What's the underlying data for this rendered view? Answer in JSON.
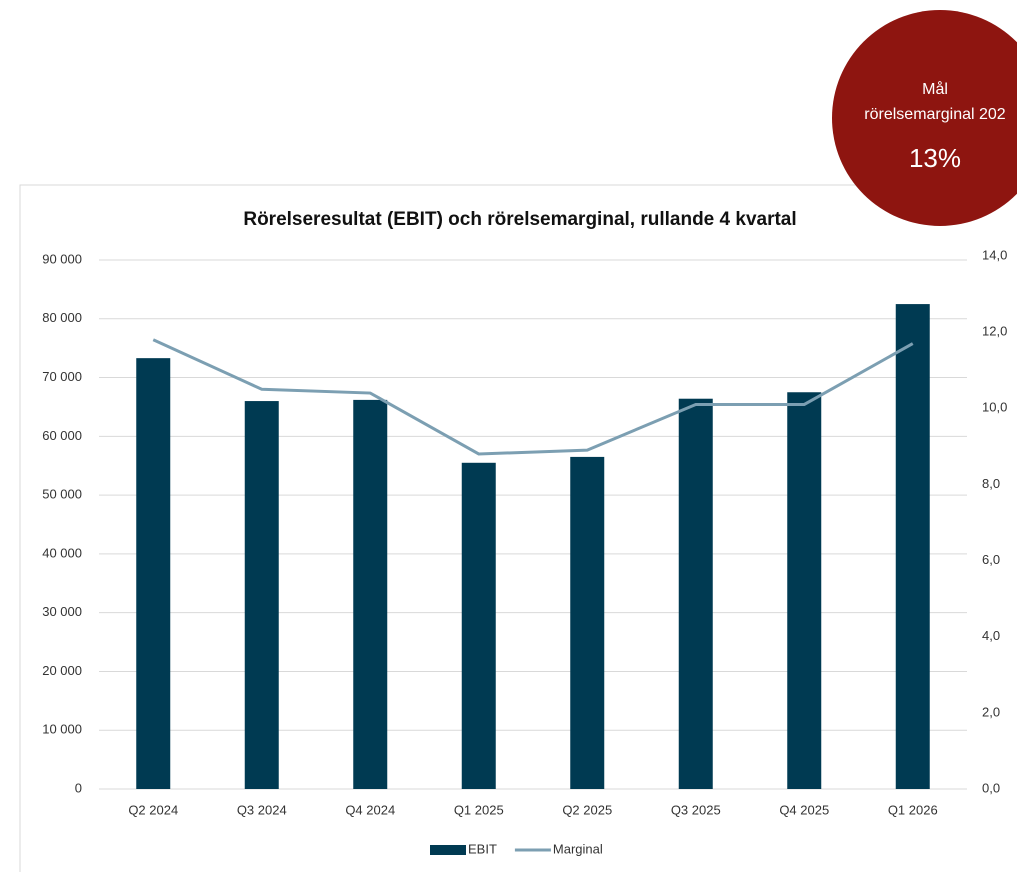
{
  "chart_data": {
    "type": "bar",
    "title": "Rörelseresultat (EBIT) och rörelsemarginal, rullande 4 kvartal",
    "categories": [
      "Q2 2024",
      "Q3 2024",
      "Q4 2024",
      "Q1 2025",
      "Q2 2025",
      "Q3 2025",
      "Q4 2025",
      "Q1 2026"
    ],
    "series": [
      {
        "name": "EBIT",
        "type": "bar",
        "color": "#003a52",
        "values": [
          73300,
          66000,
          66200,
          55500,
          56500,
          66400,
          67500,
          82500
        ]
      },
      {
        "name": "Marginal",
        "type": "line",
        "axis": "y2",
        "color": "#7c9fb2",
        "values": [
          11.8,
          10.5,
          10.4,
          8.8,
          8.9,
          10.1,
          10.1,
          11.7
        ]
      }
    ],
    "ylim": [
      0,
      90000
    ],
    "yticks": [
      0,
      {
        "value": 10000,
        "label": "10 000"
      },
      {
        "value": 20000,
        "label": "20 000"
      },
      {
        "value": 30000,
        "label": "30 000"
      },
      {
        "value": 40000,
        "label": "40 000"
      },
      {
        "value": 50000,
        "label": "50 000"
      },
      {
        "value": 60000,
        "label": "60 000"
      },
      {
        "value": 70000,
        "label": "70 000"
      },
      {
        "value": 80000,
        "label": "80 000"
      },
      {
        "value": 90000,
        "label": "90 000"
      }
    ],
    "y2lim": [
      0,
      14
    ],
    "y2ticks": [
      {
        "value": 0,
        "label": "0,0"
      },
      {
        "value": 2,
        "label": "2,0"
      },
      {
        "value": 4,
        "label": "4,0"
      },
      {
        "value": 6,
        "label": "6,0"
      },
      {
        "value": 8,
        "label": "8,0"
      },
      {
        "value": 10,
        "label": "10,0"
      },
      {
        "value": 12,
        "label": "12,0"
      },
      {
        "value": 14,
        "label": "14,0"
      }
    ],
    "grid": true,
    "legend": "bottom"
  },
  "badge": {
    "line1": "Mål",
    "line2": "rörelsemarginal 202",
    "value": "13%",
    "color": "#8e1510"
  }
}
